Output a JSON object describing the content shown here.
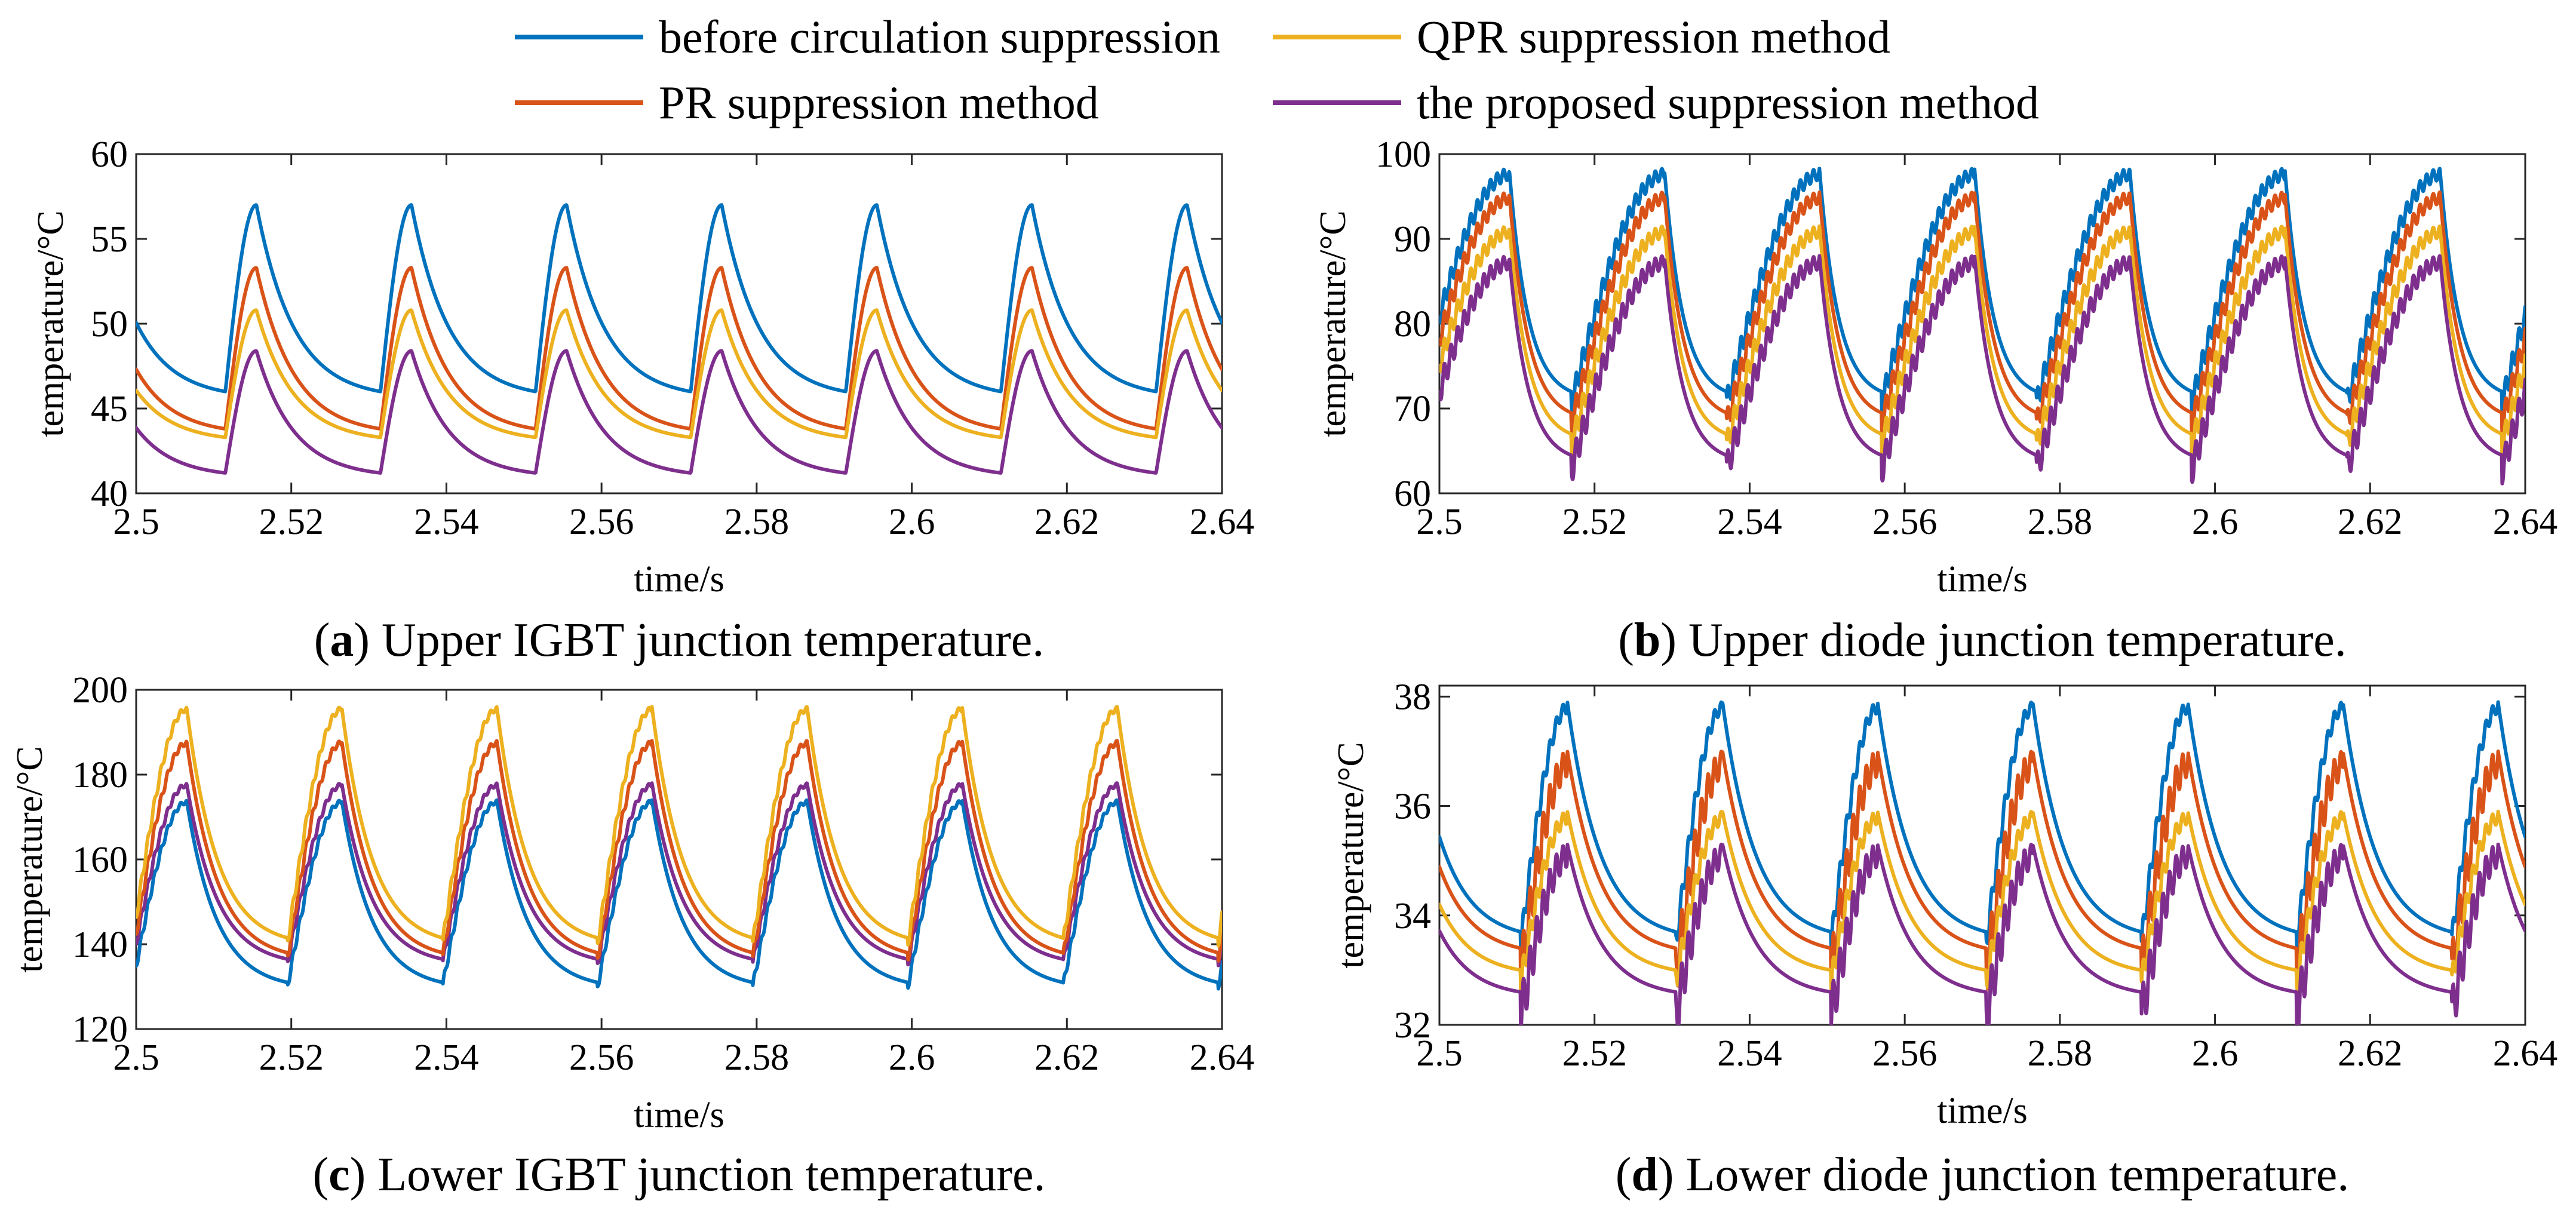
{
  "legend": {
    "entries": [
      {
        "name": "before circulation suppression",
        "color": "#0072BD"
      },
      {
        "name": "QPR suppression method",
        "color": "#EDB120"
      },
      {
        "name": "PR suppression method",
        "color": "#D95319"
      },
      {
        "name": "the proposed suppression method",
        "color": "#7E2F8E"
      }
    ]
  },
  "chart_data": [
    {
      "id": "a",
      "type": "line",
      "caption_letter": "a",
      "caption_text": " Upper IGBT junction temperature.",
      "xlabel": "time/s",
      "ylabel": "temperature/°C",
      "xlim": [
        2.5,
        2.64
      ],
      "ylim": [
        40,
        60
      ],
      "xticks": [
        2.5,
        2.52,
        2.54,
        2.56,
        2.58,
        2.6,
        2.62,
        2.64
      ],
      "xtick_labels": [
        "2.5",
        "2.52",
        "2.54",
        "2.56",
        "2.58",
        "2.6",
        "2.62",
        "2.64"
      ],
      "yticks": [
        40,
        45,
        50,
        55,
        60
      ],
      "ytick_labels": [
        "40",
        "45",
        "50",
        "55",
        "60"
      ],
      "period": 0.02,
      "peak_time": 2.5155,
      "ripple_start": 2.5115,
      "series": [
        {
          "name": "before circulation suppression",
          "color": "#0072BD",
          "min": 46.0,
          "max": 57.0,
          "ripple": 0
        },
        {
          "name": "PR suppression method",
          "color": "#D95319",
          "min": 43.8,
          "max": 53.3,
          "ripple": 0
        },
        {
          "name": "QPR suppression method",
          "color": "#EDB120",
          "min": 43.3,
          "max": 50.8,
          "ripple": 0
        },
        {
          "name": "the proposed suppression method",
          "color": "#7E2F8E",
          "min": 41.2,
          "max": 48.4,
          "ripple": 0
        }
      ]
    },
    {
      "id": "b",
      "type": "line",
      "caption_letter": "b",
      "caption_text": " Upper diode junction temperature.",
      "xlabel": "time/s",
      "ylabel": "temperature/°C",
      "xlim": [
        2.5,
        2.64
      ],
      "ylim": [
        60,
        100
      ],
      "xticks": [
        2.5,
        2.52,
        2.54,
        2.56,
        2.58,
        2.6,
        2.62,
        2.64
      ],
      "xtick_labels": [
        "2.5",
        "2.52",
        "2.54",
        "2.56",
        "2.58",
        "2.6",
        "2.62",
        "2.64"
      ],
      "yticks": [
        60,
        70,
        80,
        90,
        100
      ],
      "ytick_labels": [
        "60",
        "70",
        "80",
        "90",
        "100"
      ],
      "period": 0.02,
      "peak_time": 2.509,
      "ripple_start": 2.497,
      "series": [
        {
          "name": "before circulation suppression",
          "color": "#0072BD",
          "min": 72.0,
          "max": 98.3,
          "ripple": 3.0
        },
        {
          "name": "PR suppression method",
          "color": "#D95319",
          "min": 69.5,
          "max": 95.5,
          "ripple": 3.0
        },
        {
          "name": "QPR suppression method",
          "color": "#EDB120",
          "min": 67.0,
          "max": 91.5,
          "ripple": 3.0
        },
        {
          "name": "the proposed suppression method",
          "color": "#7E2F8E",
          "min": 64.5,
          "max": 88.0,
          "ripple": 3.5
        }
      ]
    },
    {
      "id": "c",
      "type": "line",
      "caption_letter": "c",
      "caption_text": " Lower IGBT junction temperature.",
      "xlabel": "time/s",
      "ylabel": "temperature/°C",
      "xlim": [
        2.5,
        2.64
      ],
      "ylim": [
        120,
        200
      ],
      "xticks": [
        2.5,
        2.52,
        2.54,
        2.56,
        2.58,
        2.6,
        2.62,
        2.64
      ],
      "xtick_labels": [
        "2.5",
        "2.52",
        "2.54",
        "2.56",
        "2.58",
        "2.6",
        "2.62",
        "2.64"
      ],
      "yticks": [
        120,
        140,
        160,
        180,
        200
      ],
      "ytick_labels": [
        "120",
        "140",
        "160",
        "180",
        "200"
      ],
      "period": 0.02,
      "peak_time": 2.5065,
      "ripple_start": 2.4995,
      "series": [
        {
          "name": "before circulation suppression",
          "color": "#0072BD",
          "min": 131.0,
          "max": 174.0,
          "ripple": 2.0
        },
        {
          "name": "the proposed suppression method",
          "color": "#7E2F8E",
          "min": 136.5,
          "max": 178.0,
          "ripple": 2.0
        },
        {
          "name": "PR suppression method",
          "color": "#D95319",
          "min": 138.0,
          "max": 188.0,
          "ripple": 2.5
        },
        {
          "name": "QPR suppression method",
          "color": "#EDB120",
          "min": 141.5,
          "max": 196.0,
          "ripple": 2.5
        }
      ]
    },
    {
      "id": "d",
      "type": "line",
      "caption_letter": "d",
      "caption_text": " Lower diode junction temperature.",
      "xlabel": "time/s",
      "ylabel": "temperature/°C",
      "xlim": [
        2.5,
        2.64
      ],
      "ylim": [
        32,
        38.2
      ],
      "xticks": [
        2.5,
        2.52,
        2.54,
        2.56,
        2.58,
        2.6,
        2.62,
        2.64
      ],
      "xtick_labels": [
        "2.5",
        "2.52",
        "2.54",
        "2.56",
        "2.58",
        "2.6",
        "2.62",
        "2.64"
      ],
      "yticks": [
        32,
        34,
        36,
        38
      ],
      "ytick_labels": [
        "32",
        "34",
        "36",
        "38"
      ],
      "period": 0.02,
      "peak_time": 2.5165,
      "ripple_start": 2.5105,
      "series": [
        {
          "name": "before circulation suppression",
          "color": "#0072BD",
          "min": 33.7,
          "max": 37.9,
          "ripple": 0.45
        },
        {
          "name": "PR suppression method",
          "color": "#D95319",
          "min": 33.4,
          "max": 37.0,
          "ripple": 1.0
        },
        {
          "name": "QPR suppression method",
          "color": "#EDB120",
          "min": 33.0,
          "max": 35.9,
          "ripple": 0.5
        },
        {
          "name": "the proposed suppression method",
          "color": "#7E2F8E",
          "min": 32.6,
          "max": 35.3,
          "ripple": 0.9
        }
      ]
    }
  ]
}
